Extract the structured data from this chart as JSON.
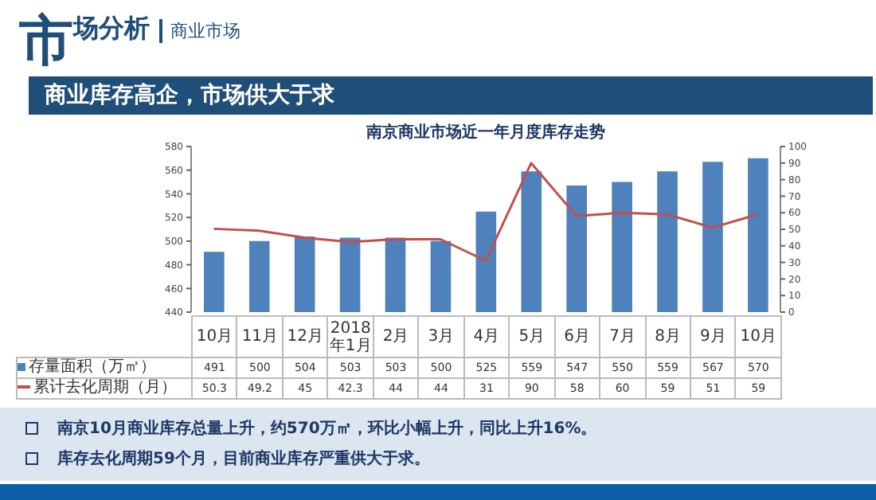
{
  "chart_data": {
    "type": "bar",
    "title": "南京商业市场近一年月度库存走势",
    "annotations": [
      "市场分析",
      "商业市场",
      "商业库存高企，市场供大于求",
      "南京10月商业库存总量上升，约570万㎡，环比小幅上升，同比上升16%。",
      "库存去化周期59个月，目前商业库存严重供大于求。"
    ],
    "categories": [
      "10月",
      "11月",
      "12月",
      "2018年1月",
      "2月",
      "3月",
      "4月",
      "5月",
      "6月",
      "7月",
      "8月",
      "9月",
      "10月"
    ],
    "series": [
      {
        "name": "存量面积（万㎡）",
        "color": "#4f81bd",
        "values": [
          491,
          500,
          504,
          503,
          503,
          500,
          525,
          559,
          547,
          550,
          559,
          567,
          570
        ]
      },
      {
        "name": "累计去化周期（月）",
        "type": "line",
        "axis": "y2",
        "color": "#c0504d",
        "values": [
          50.3,
          49.2,
          45,
          42.3,
          44,
          44,
          31,
          90,
          58,
          60,
          59,
          51,
          59
        ]
      }
    ],
    "ylim": [
      440,
      580
    ],
    "yticks": [
      440,
      460,
      480,
      500,
      520,
      540,
      560,
      580
    ],
    "y2lim": [
      0,
      100
    ],
    "y2ticks": [
      0,
      10,
      20,
      30,
      40,
      50,
      60,
      70,
      80,
      90,
      100
    ],
    "data_labels": true,
    "legend": "bottom",
    "marker": "none",
    "line_style": "solid"
  }
}
